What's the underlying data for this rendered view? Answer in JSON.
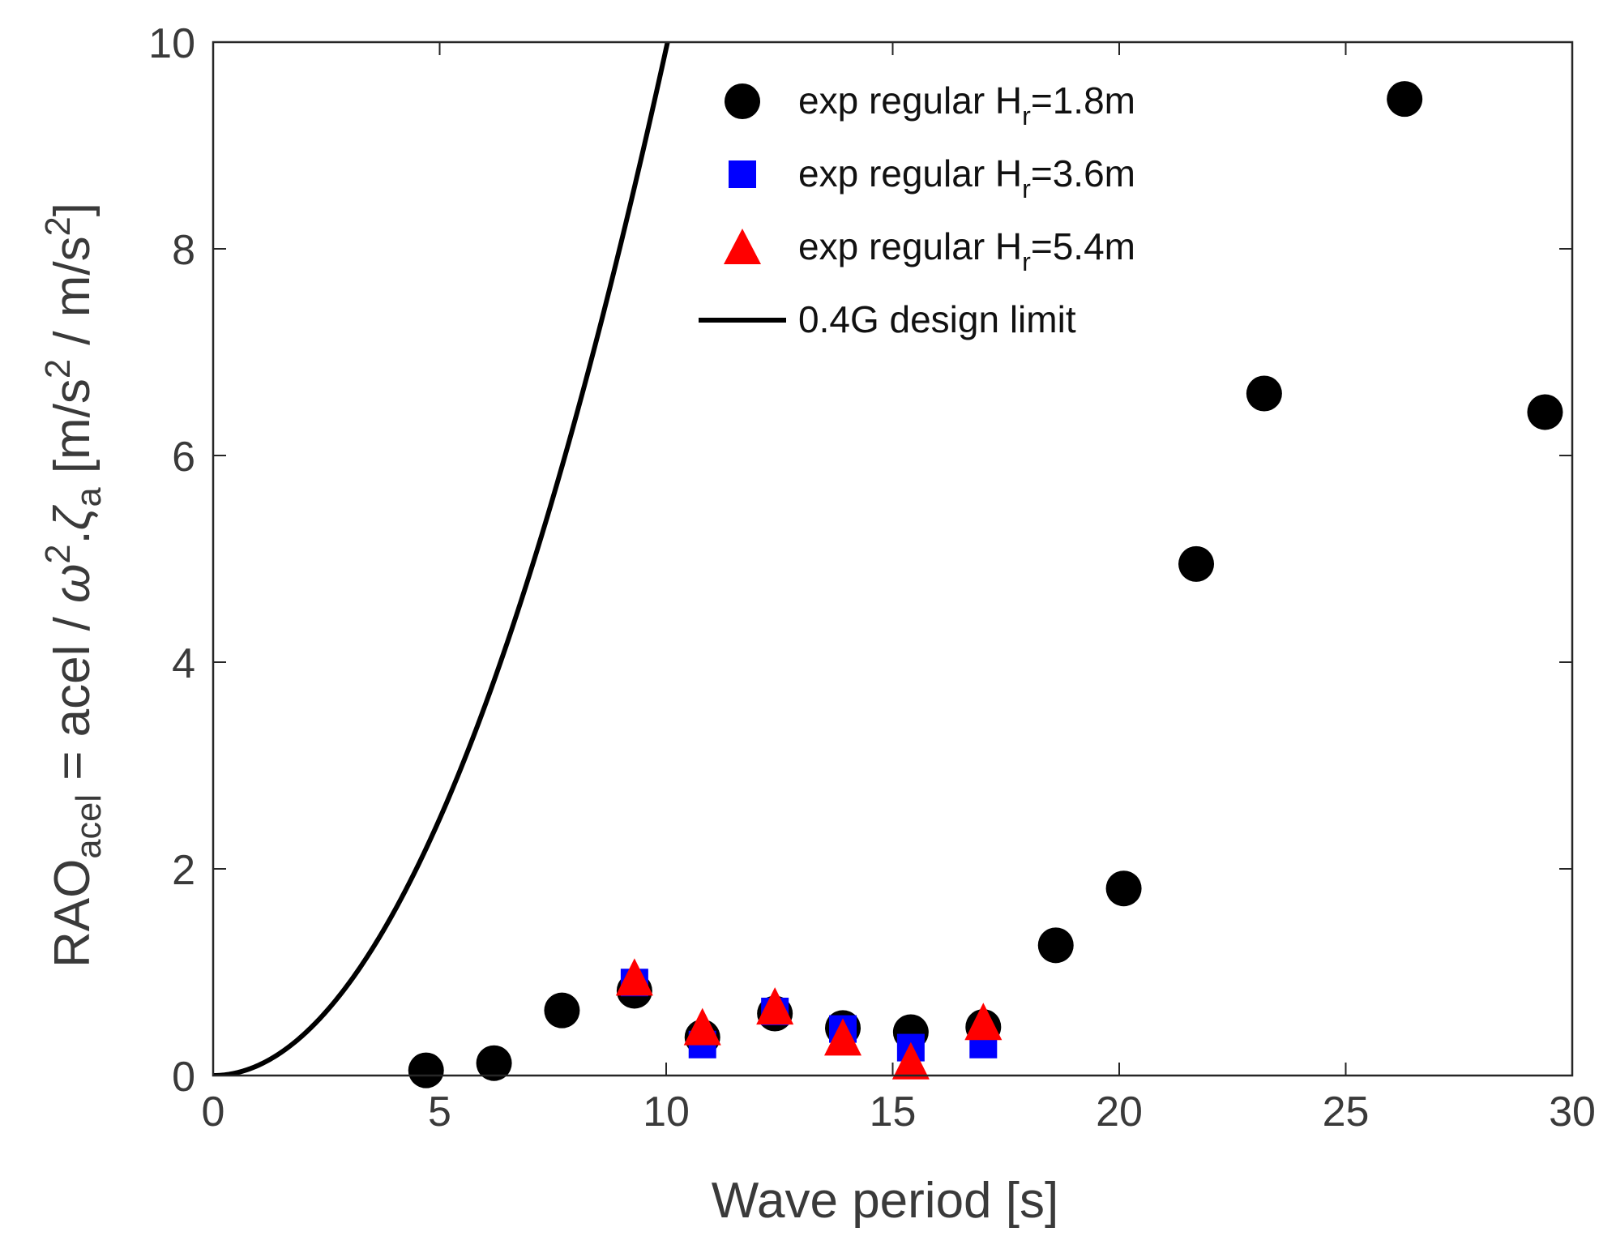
{
  "chart_data": {
    "type": "scatter",
    "xlabel": "Wave period [s]",
    "ylabel": {
      "main": "RAO",
      "sub": "acel",
      "rest_a": " = acel / ",
      "omega": "ω",
      "sup2": "2",
      "dot": ".",
      "zeta": "ζ",
      "zeta_sub": "a",
      "units_a": "  [m/s",
      "units_sup1": "2",
      "units_b": " / m/s",
      "units_sup2": "2",
      "units_c": "]"
    },
    "xlim": [
      0,
      30
    ],
    "ylim": [
      0,
      10
    ],
    "xticks": [
      0,
      5,
      10,
      15,
      20,
      25,
      30
    ],
    "xtick_labels": [
      "0",
      "5",
      "10",
      "15",
      "20",
      "25",
      "30"
    ],
    "yticks": [
      0,
      2,
      4,
      6,
      8,
      10
    ],
    "ytick_labels": [
      "0",
      "2",
      "4",
      "6",
      "8",
      "10"
    ],
    "legend_position": "top-right",
    "series": [
      {
        "name": "exp regular H_r=1.8m",
        "label_main": "exp regular H",
        "label_sub": "r",
        "label_end": "=1.8m",
        "marker": "circle",
        "color": "#000000",
        "x": [
          4.7,
          6.2,
          7.7,
          9.3,
          10.8,
          12.4,
          13.9,
          15.4,
          17.0,
          18.6,
          20.1,
          21.7,
          23.2,
          26.3,
          29.4
        ],
        "y": [
          0.05,
          0.12,
          0.63,
          0.82,
          0.37,
          0.6,
          0.46,
          0.42,
          0.47,
          1.26,
          1.81,
          4.95,
          6.6,
          9.45,
          6.42
        ]
      },
      {
        "name": "exp regular H_r=3.6m",
        "label_main": "exp regular H",
        "label_sub": "r",
        "label_end": "=3.6m",
        "marker": "square",
        "color": "#0000ff",
        "x": [
          9.3,
          10.8,
          12.4,
          13.9,
          15.4,
          17.0
        ],
        "y": [
          0.9,
          0.3,
          0.62,
          0.45,
          0.27,
          0.3
        ]
      },
      {
        "name": "exp regular H_r=5.4m",
        "label_main": "exp regular H",
        "label_sub": "r",
        "label_end": "=5.4m",
        "marker": "triangle",
        "color": "#ff0000",
        "x": [
          9.3,
          10.8,
          12.4,
          13.9,
          15.4,
          17.0
        ],
        "y": [
          0.93,
          0.45,
          0.65,
          0.35,
          0.12,
          0.5
        ]
      },
      {
        "name": "0.4G design limit",
        "label_main": "0.4G design limit",
        "marker": "line",
        "color": "#000000",
        "formula": "y = 0.4*9.81*(T/(2*pi))^2",
        "x": [
          0,
          1,
          2,
          3,
          4,
          5,
          6,
          7,
          8,
          9,
          10
        ],
        "y": [
          0,
          0.1,
          0.4,
          0.89,
          1.59,
          2.48,
          3.58,
          4.87,
          6.36,
          8.05,
          9.94
        ]
      }
    ]
  }
}
